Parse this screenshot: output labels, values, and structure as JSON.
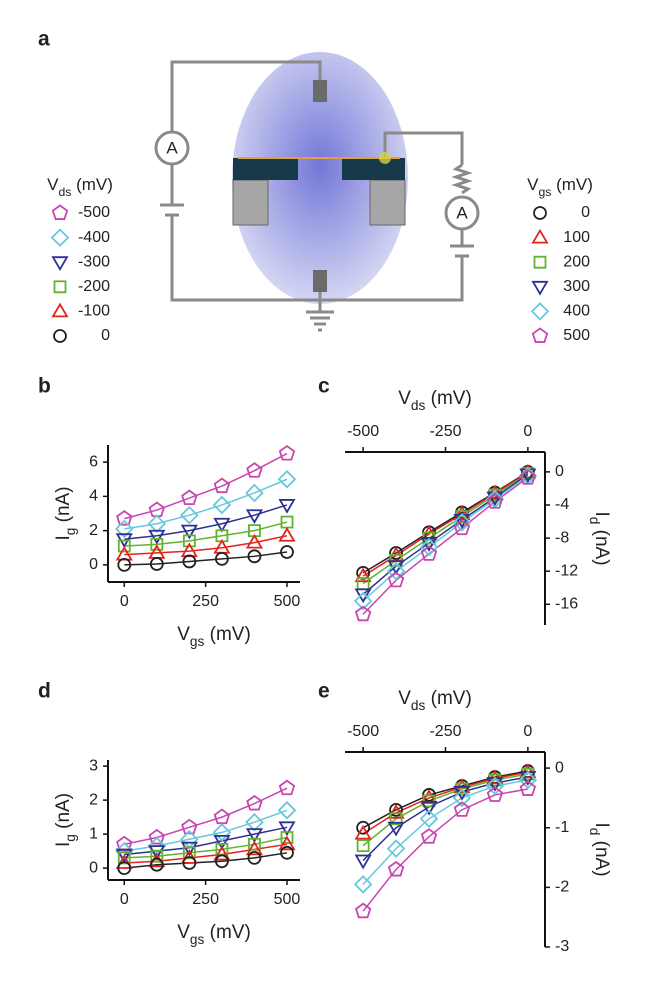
{
  "panel_labels": [
    "a",
    "b",
    "c",
    "d",
    "e"
  ],
  "diagram": {
    "meter_labels": [
      "A",
      "A"
    ]
  },
  "legends": [
    {
      "title": {
        "main": "V",
        "sub": "ds",
        "rest": " (mV)"
      },
      "entries": [
        {
          "label": "-500",
          "marker": "pentagon",
          "color": "#c845b0"
        },
        {
          "label": "-400",
          "marker": "diamond",
          "color": "#66c8dc"
        },
        {
          "label": "-300",
          "marker": "triangle-down",
          "color": "#2e3192"
        },
        {
          "label": "-200",
          "marker": "square",
          "color": "#62b22f"
        },
        {
          "label": "-100",
          "marker": "triangle",
          "color": "#e3231e"
        },
        {
          "label": "0",
          "marker": "circle",
          "color": "#222222"
        }
      ]
    },
    {
      "title": {
        "main": "V",
        "sub": "gs",
        "rest": " (mV)"
      },
      "entries": [
        {
          "label": "0",
          "marker": "circle",
          "color": "#222222"
        },
        {
          "label": "100",
          "marker": "triangle",
          "color": "#e3231e"
        },
        {
          "label": "200",
          "marker": "square",
          "color": "#62b22f"
        },
        {
          "label": "300",
          "marker": "triangle-down",
          "color": "#2e3192"
        },
        {
          "label": "400",
          "marker": "diamond",
          "color": "#66c8dc"
        },
        {
          "label": "500",
          "marker": "pentagon",
          "color": "#c845b0"
        }
      ]
    }
  ],
  "chart_data": [
    {
      "type": "line",
      "x_label": {
        "main": "V",
        "sub": "gs",
        "rest": " (mV)"
      },
      "y_label": {
        "main": "I",
        "sub": "g",
        "rest": " (nA)"
      },
      "x": [
        0,
        100,
        200,
        300,
        400,
        500
      ],
      "xlim": [
        -50,
        540
      ],
      "xticks": [
        0,
        250,
        500
      ],
      "ylim": [
        -1,
        7
      ],
      "yticks": [
        0,
        2,
        4,
        6
      ],
      "series": [
        {
          "marker": "pentagon",
          "color": "#c845b0",
          "values": [
            2.7,
            3.2,
            3.9,
            4.6,
            5.5,
            6.5
          ]
        },
        {
          "marker": "diamond",
          "color": "#66c8dc",
          "values": [
            2.1,
            2.4,
            2.9,
            3.5,
            4.2,
            5.0
          ]
        },
        {
          "marker": "triangle-down",
          "color": "#2e3192",
          "values": [
            1.5,
            1.7,
            2.0,
            2.4,
            2.9,
            3.5
          ]
        },
        {
          "marker": "square",
          "color": "#62b22f",
          "values": [
            1.1,
            1.2,
            1.4,
            1.7,
            2.0,
            2.5
          ]
        },
        {
          "marker": "triangle",
          "color": "#e3231e",
          "values": [
            0.6,
            0.7,
            0.8,
            1.0,
            1.3,
            1.7
          ]
        },
        {
          "marker": "circle",
          "color": "#222222",
          "values": [
            0.0,
            0.05,
            0.2,
            0.35,
            0.5,
            0.75
          ]
        }
      ]
    },
    {
      "type": "line",
      "x_label": {
        "main": "V",
        "sub": "ds",
        "rest": " (mV)"
      },
      "y_label": {
        "main": "I",
        "sub": "d",
        "rest": " (nA)"
      },
      "x": [
        -500,
        -400,
        -300,
        -200,
        -100,
        0
      ],
      "xlim": [
        -555,
        52
      ],
      "xticks": [
        -500,
        -250,
        0
      ],
      "ylim": [
        -18.5,
        2.4
      ],
      "yticks": [
        0,
        -4,
        -8,
        -12,
        -16
      ],
      "series": [
        {
          "marker": "circle",
          "color": "#222222",
          "values": [
            -12.2,
            -9.8,
            -7.3,
            -4.9,
            -2.5,
            0
          ]
        },
        {
          "marker": "triangle",
          "color": "#e3231e",
          "values": [
            -12.6,
            -10.1,
            -7.5,
            -5.1,
            -2.6,
            -0.1
          ]
        },
        {
          "marker": "square",
          "color": "#62b22f",
          "values": [
            -13.5,
            -10.7,
            -8.0,
            -5.4,
            -2.8,
            -0.2
          ]
        },
        {
          "marker": "triangle-down",
          "color": "#2e3192",
          "values": [
            -14.8,
            -11.4,
            -8.6,
            -5.8,
            -3.1,
            -0.3
          ]
        },
        {
          "marker": "diamond",
          "color": "#66c8dc",
          "values": [
            -15.6,
            -12.0,
            -9.1,
            -6.1,
            -3.3,
            -0.5
          ]
        },
        {
          "marker": "pentagon",
          "color": "#c845b0",
          "values": [
            -17.2,
            -13.1,
            -9.9,
            -6.8,
            -3.6,
            -0.7
          ]
        }
      ]
    },
    {
      "type": "line",
      "x_label": {
        "main": "V",
        "sub": "gs",
        "rest": " (mV)"
      },
      "y_label": {
        "main": "I",
        "sub": "g",
        "rest": " (nA)"
      },
      "x": [
        0,
        100,
        200,
        300,
        400,
        500
      ],
      "xlim": [
        -50,
        540
      ],
      "xticks": [
        0,
        250,
        500
      ],
      "ylim": [
        -0.35,
        3.18
      ],
      "yticks": [
        0,
        1,
        2,
        3
      ],
      "series": [
        {
          "marker": "pentagon",
          "color": "#c845b0",
          "values": [
            0.7,
            0.9,
            1.2,
            1.5,
            1.9,
            2.35
          ]
        },
        {
          "marker": "diamond",
          "color": "#66c8dc",
          "values": [
            0.5,
            0.65,
            0.85,
            1.05,
            1.35,
            1.7
          ]
        },
        {
          "marker": "triangle-down",
          "color": "#2e3192",
          "values": [
            0.4,
            0.5,
            0.6,
            0.8,
            1.0,
            1.2
          ]
        },
        {
          "marker": "square",
          "color": "#62b22f",
          "values": [
            0.3,
            0.35,
            0.45,
            0.55,
            0.7,
            0.9
          ]
        },
        {
          "marker": "triangle",
          "color": "#e3231e",
          "values": [
            0.15,
            0.2,
            0.3,
            0.4,
            0.55,
            0.7
          ]
        },
        {
          "marker": "circle",
          "color": "#222222",
          "values": [
            0.0,
            0.1,
            0.15,
            0.2,
            0.3,
            0.45
          ]
        }
      ]
    },
    {
      "type": "line",
      "x_label": {
        "main": "V",
        "sub": "ds",
        "rest": " (mV)"
      },
      "y_label": {
        "main": "I",
        "sub": "d",
        "rest": " (nA)"
      },
      "x": [
        -500,
        -400,
        -300,
        -200,
        -100,
        0
      ],
      "xlim": [
        -555,
        52
      ],
      "xticks": [
        -500,
        -250,
        0
      ],
      "ylim": [
        -3,
        0.27
      ],
      "yticks": [
        0,
        -1,
        -2,
        -3
      ],
      "series": [
        {
          "marker": "circle",
          "color": "#222222",
          "values": [
            -1.0,
            -0.7,
            -0.45,
            -0.3,
            -0.15,
            -0.05
          ]
        },
        {
          "marker": "triangle",
          "color": "#e3231e",
          "values": [
            -1.1,
            -0.75,
            -0.5,
            -0.32,
            -0.17,
            -0.07
          ]
        },
        {
          "marker": "square",
          "color": "#62b22f",
          "values": [
            -1.3,
            -0.85,
            -0.55,
            -0.35,
            -0.2,
            -0.1
          ]
        },
        {
          "marker": "triangle-down",
          "color": "#2e3192",
          "values": [
            -1.55,
            -1.0,
            -0.65,
            -0.4,
            -0.25,
            -0.15
          ]
        },
        {
          "marker": "diamond",
          "color": "#66c8dc",
          "values": [
            -1.95,
            -1.35,
            -0.85,
            -0.5,
            -0.3,
            -0.2
          ]
        },
        {
          "marker": "pentagon",
          "color": "#c845b0",
          "values": [
            -2.4,
            -1.7,
            -1.15,
            -0.7,
            -0.45,
            -0.35
          ]
        }
      ]
    }
  ]
}
